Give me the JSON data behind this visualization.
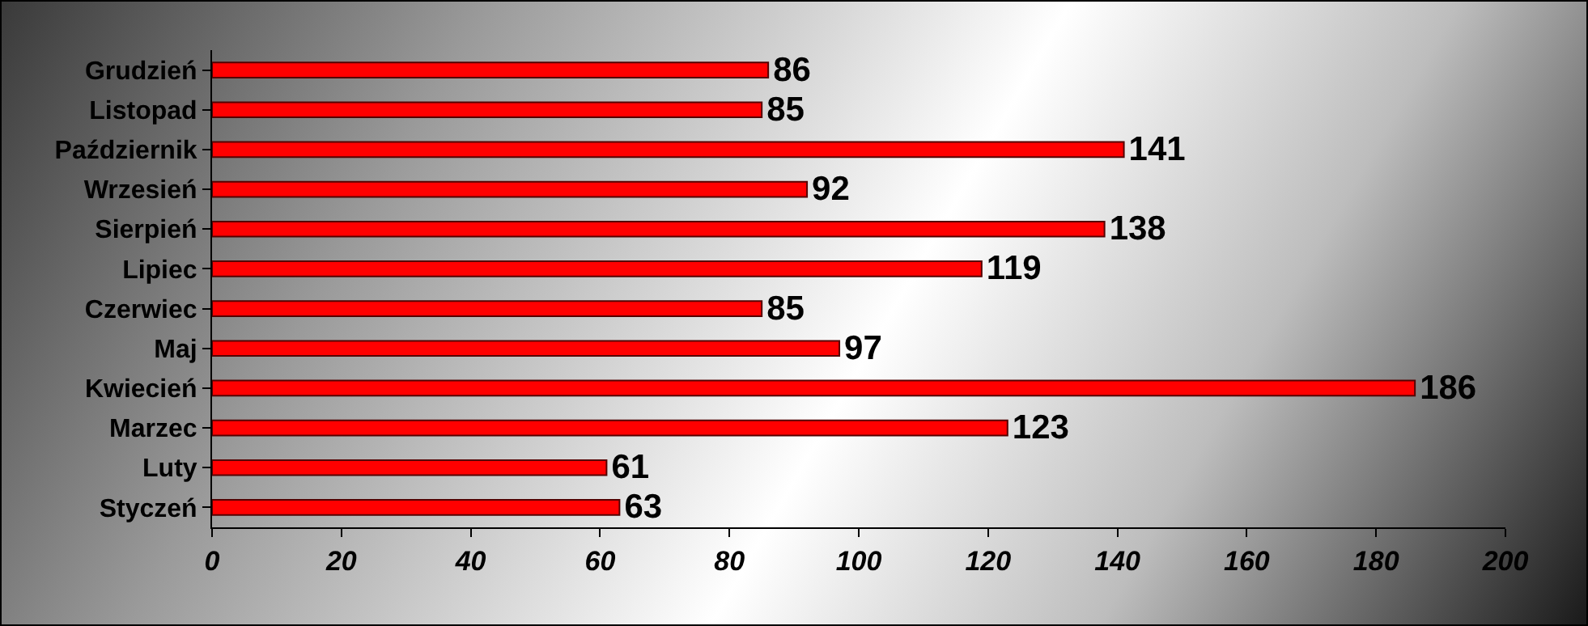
{
  "chart_data": {
    "type": "bar",
    "orientation": "horizontal",
    "categories": [
      "Grudzień",
      "Listopad",
      "Październik",
      "Wrzesień",
      "Sierpień",
      "Lipiec",
      "Czerwiec",
      "Maj",
      "Kwiecień",
      "Marzec",
      "Luty",
      "Styczeń"
    ],
    "values": [
      86,
      85,
      141,
      92,
      138,
      119,
      85,
      97,
      186,
      123,
      61,
      63
    ],
    "color": "#ff0000",
    "xlim": [
      0,
      200
    ],
    "xticks": [
      0,
      20,
      40,
      60,
      80,
      100,
      120,
      140,
      160,
      180,
      200
    ],
    "grid": false,
    "data_labels": true
  }
}
